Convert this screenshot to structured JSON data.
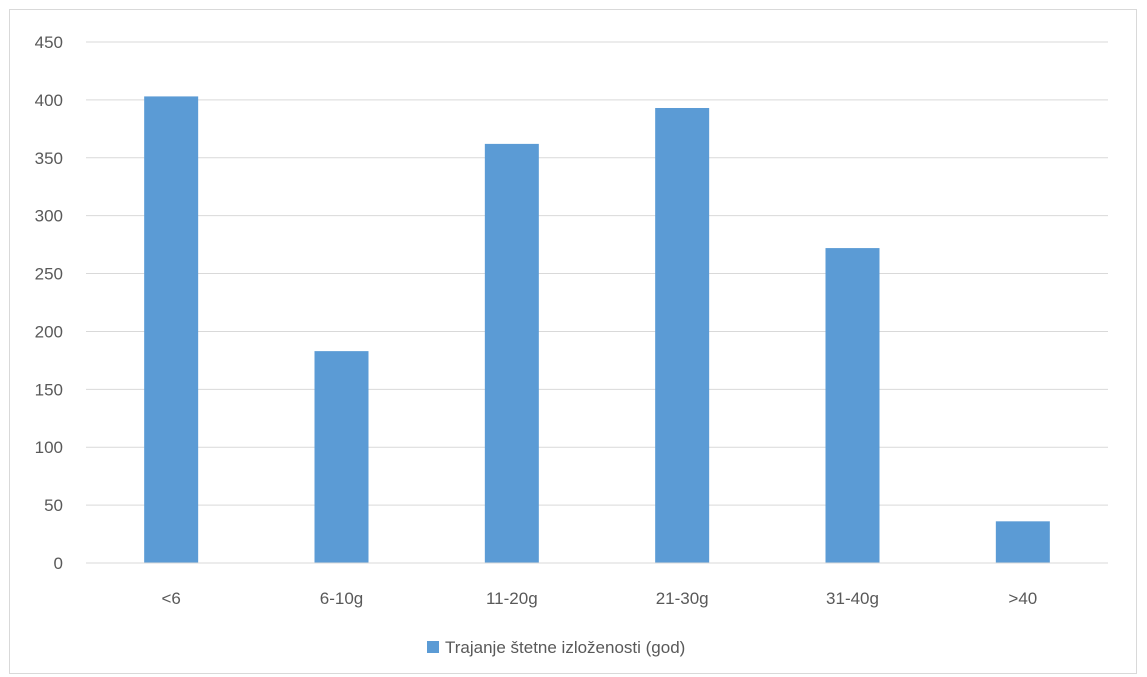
{
  "chart_data": {
    "type": "bar",
    "title": "",
    "xlabel": "",
    "ylabel": "",
    "categories": [
      "<6",
      "6-10g",
      "11-20g",
      "21-30g",
      "31-40g",
      ">40"
    ],
    "series": [
      {
        "name": "Trajanje štetne izloženosti (god)",
        "values": [
          403,
          183,
          362,
          393,
          272,
          36
        ],
        "color": "#5b9bd5"
      }
    ],
    "ylim": [
      0,
      450
    ],
    "yticks": [
      0,
      50,
      100,
      150,
      200,
      250,
      300,
      350,
      400,
      450
    ],
    "grid": true,
    "legend_position": "bottom"
  }
}
